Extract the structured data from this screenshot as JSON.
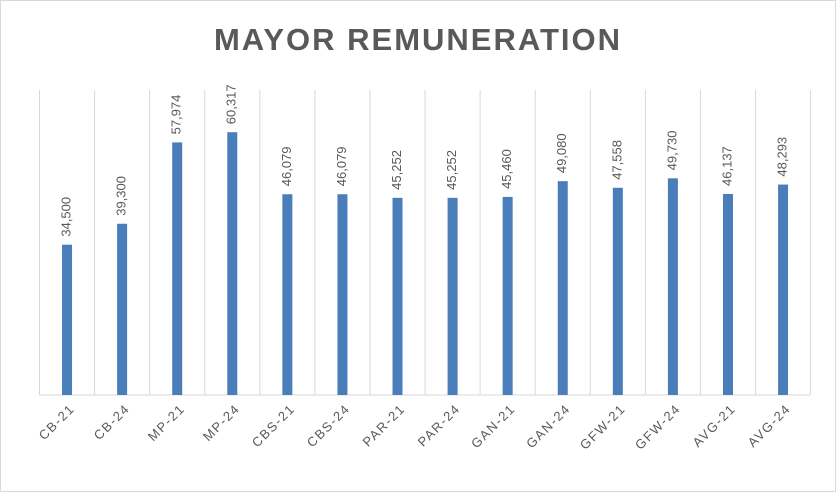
{
  "chart_data": {
    "type": "bar",
    "title": "MAYOR REMUNERATION",
    "categories": [
      "CB-21",
      "CB-24",
      "MP-21",
      "MP-24",
      "CBS-21",
      "CBS-24",
      "PAR-21",
      "PAR-24",
      "GAN-21",
      "GAN-24",
      "GFW-21",
      "GFW-24",
      "AVG-21",
      "AVG-24"
    ],
    "values": [
      34500,
      39300,
      57974,
      60317,
      46079,
      46079,
      45252,
      45252,
      45460,
      49080,
      47558,
      49730,
      46137,
      48293
    ],
    "value_labels": [
      "34,500",
      "39,300",
      "57,974",
      "60,317",
      "46,079",
      "46,079",
      "45,252",
      "45,252",
      "45,460",
      "49,080",
      "47,558",
      "49,730",
      "46,137",
      "48,293"
    ],
    "color": "#4a7ebb",
    "ylim": [
      0,
      70000
    ]
  }
}
